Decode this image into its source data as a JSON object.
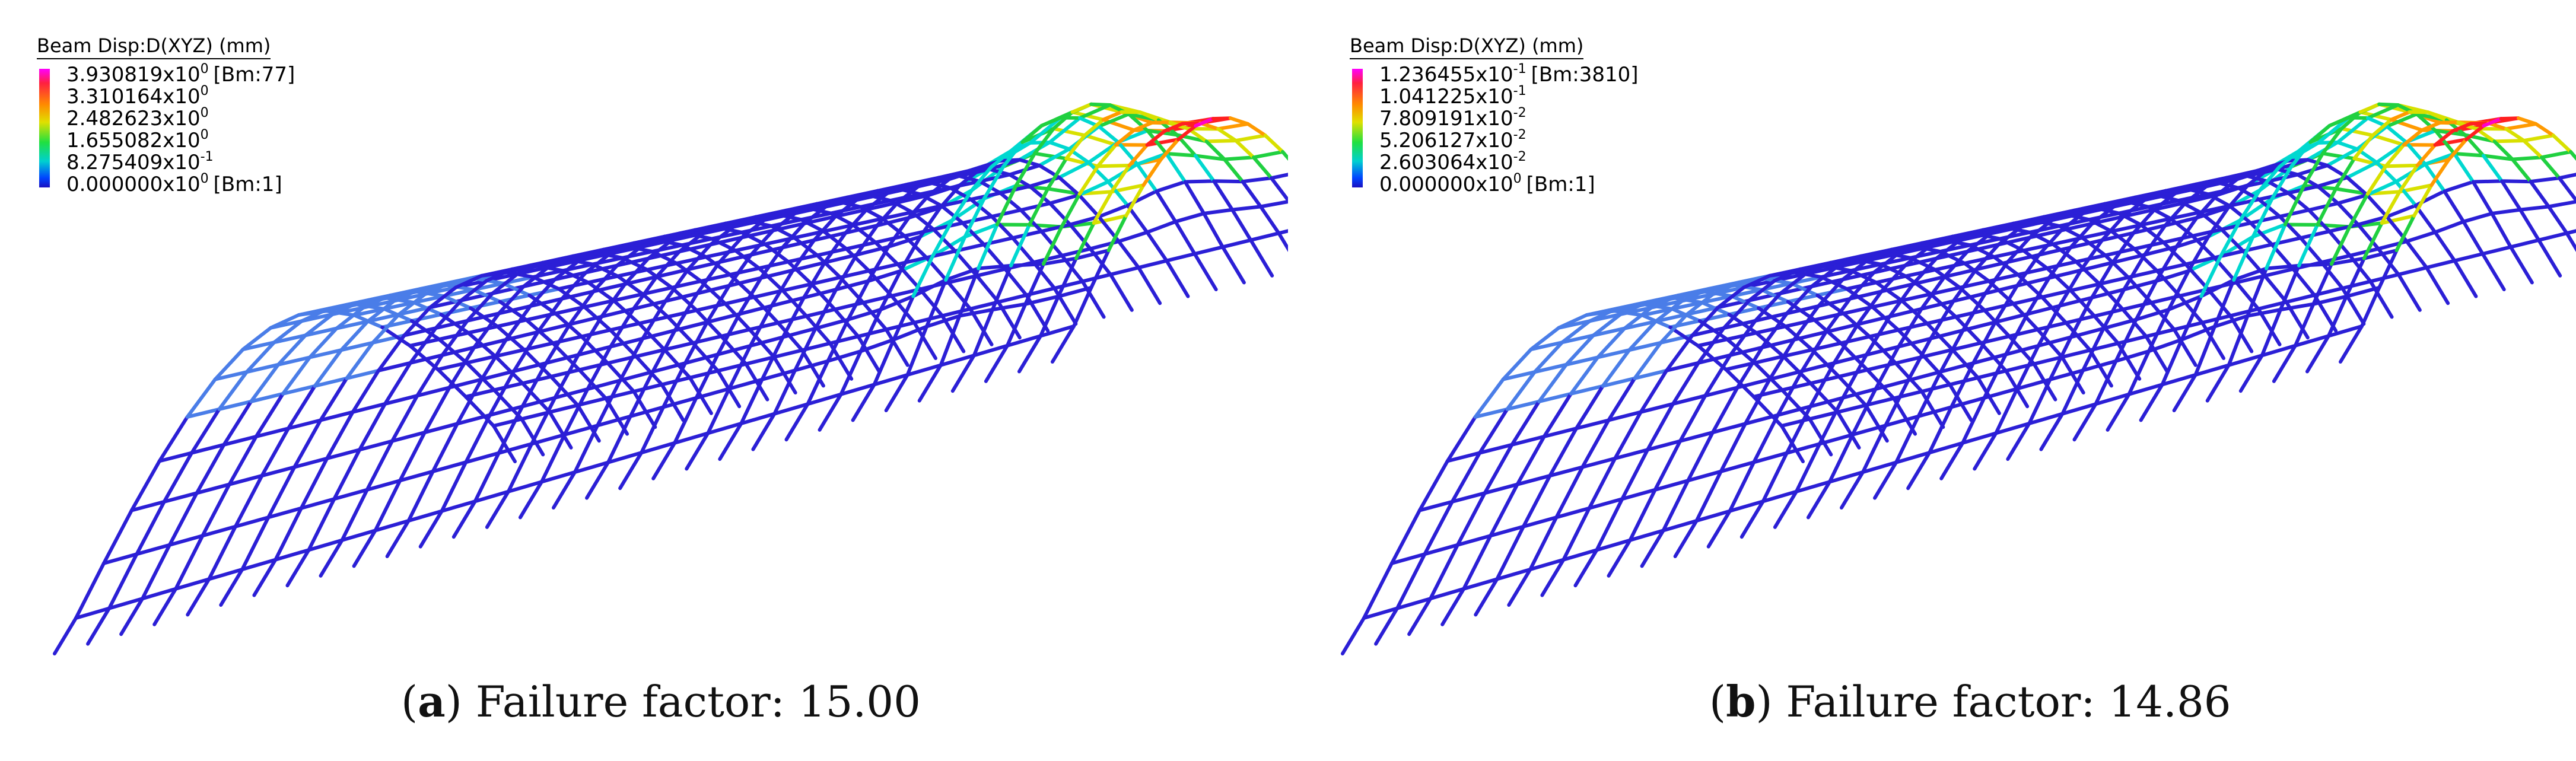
{
  "colors": {
    "mesh_base": "#2b1fd6",
    "mesh_light": "#4a7de8",
    "hot": [
      "#ff00cc",
      "#ff2020",
      "#ff9a00",
      "#d8e000",
      "#20d040",
      "#00d8d0"
    ]
  },
  "panels": [
    {
      "legend": {
        "title": "Beam Disp:D(XYZ)  (mm)",
        "entries": [
          {
            "mantissa": "3.930819x10",
            "exp": "0",
            "tag": "[Bm:77]"
          },
          {
            "mantissa": "3.310164x10",
            "exp": "0",
            "tag": ""
          },
          {
            "mantissa": "2.482623x10",
            "exp": "0",
            "tag": ""
          },
          {
            "mantissa": "1.655082x10",
            "exp": "0",
            "tag": ""
          },
          {
            "mantissa": "8.275409x10",
            "exp": "-1",
            "tag": ""
          },
          {
            "mantissa": "0.000000x10",
            "exp": "0",
            "tag": "[Bm:1]"
          }
        ]
      },
      "caption": {
        "open": "(",
        "letter": "a",
        "close": ") Failure factor: 15.00"
      }
    },
    {
      "legend": {
        "title": "Beam Disp:D(XYZ)  (mm)",
        "entries": [
          {
            "mantissa": "1.236455x10",
            "exp": "-1",
            "tag": "[Bm:3810]"
          },
          {
            "mantissa": "1.041225x10",
            "exp": "-1",
            "tag": ""
          },
          {
            "mantissa": "7.809191x10",
            "exp": "-2",
            "tag": ""
          },
          {
            "mantissa": "5.206127x10",
            "exp": "-2",
            "tag": ""
          },
          {
            "mantissa": "2.603064x10",
            "exp": "-2",
            "tag": ""
          },
          {
            "mantissa": "0.000000x10",
            "exp": "0",
            "tag": "[Bm:1]"
          }
        ]
      },
      "caption": {
        "open": "(",
        "letter": "b",
        "close": ") Failure factor: 14.86"
      }
    }
  ]
}
